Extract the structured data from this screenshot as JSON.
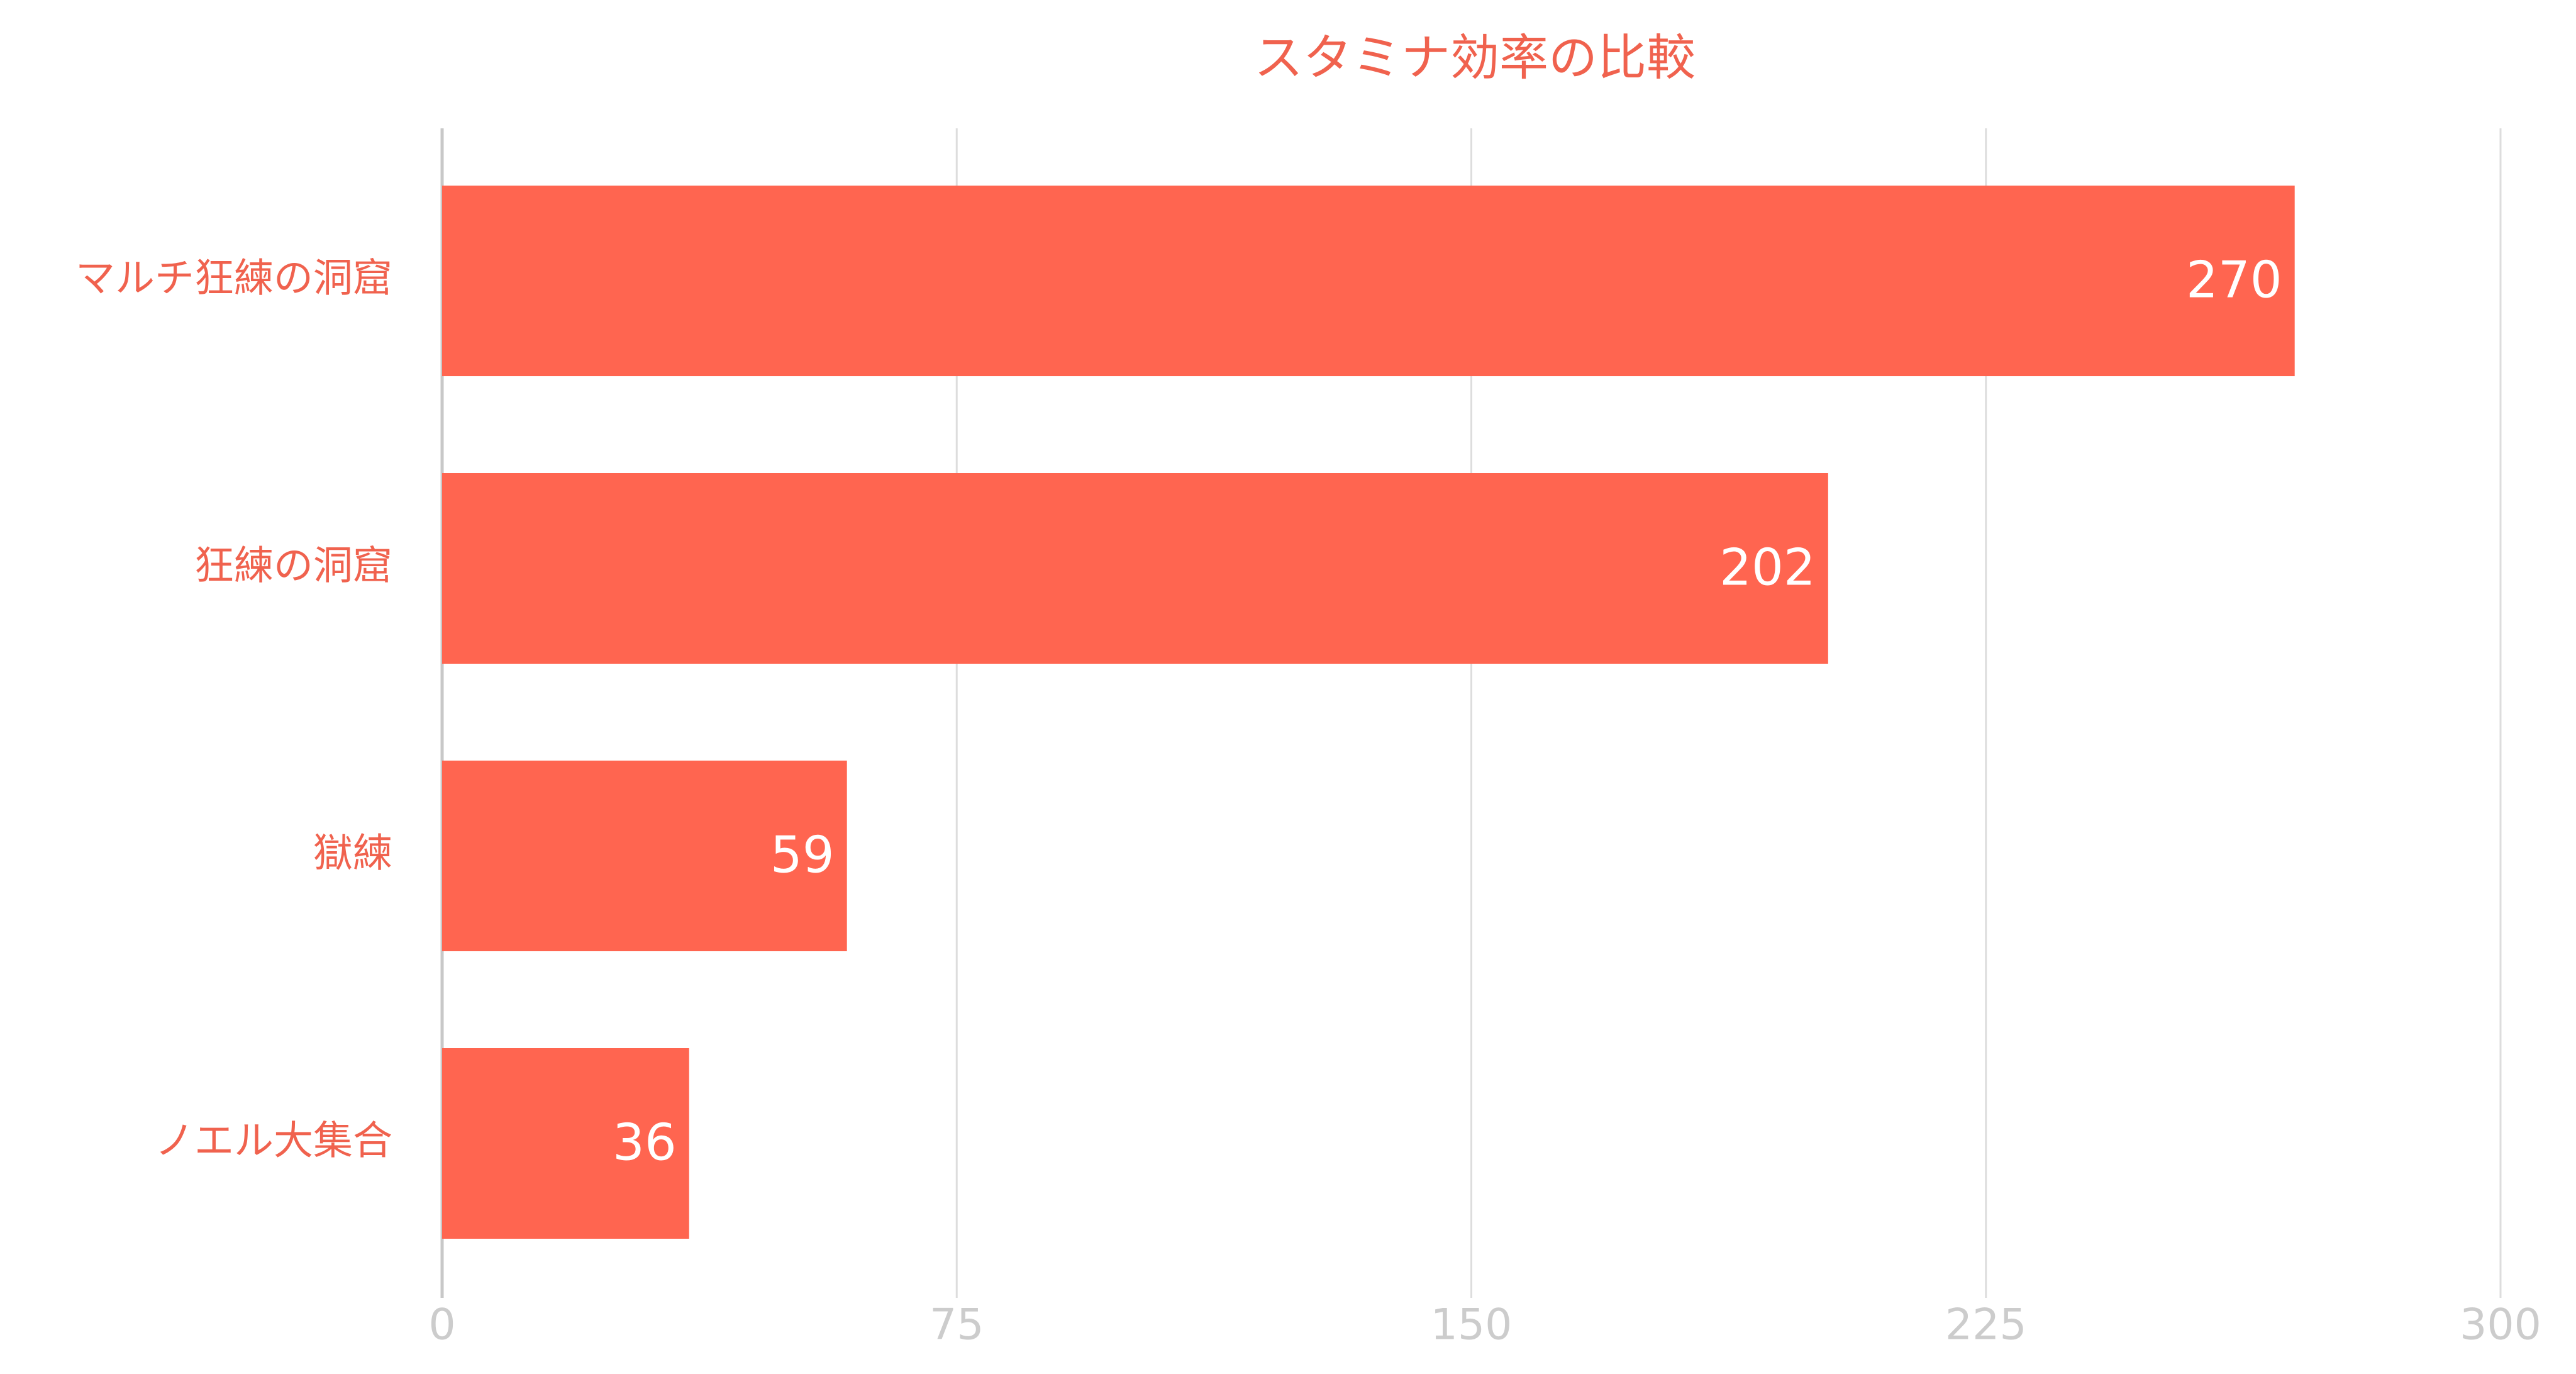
{
  "chart_data": {
    "type": "bar",
    "orientation": "horizontal",
    "title": "スタミナ効率の比較",
    "categories": [
      "マルチ狂練の洞窟",
      "狂練の洞窟",
      "獄練",
      "ノエル大集合"
    ],
    "values": [
      270,
      202,
      59,
      36
    ],
    "color": "#ff6550",
    "xlim": [
      0,
      300
    ],
    "xticks": [
      0,
      75,
      150,
      225,
      300
    ],
    "grid": true
  }
}
